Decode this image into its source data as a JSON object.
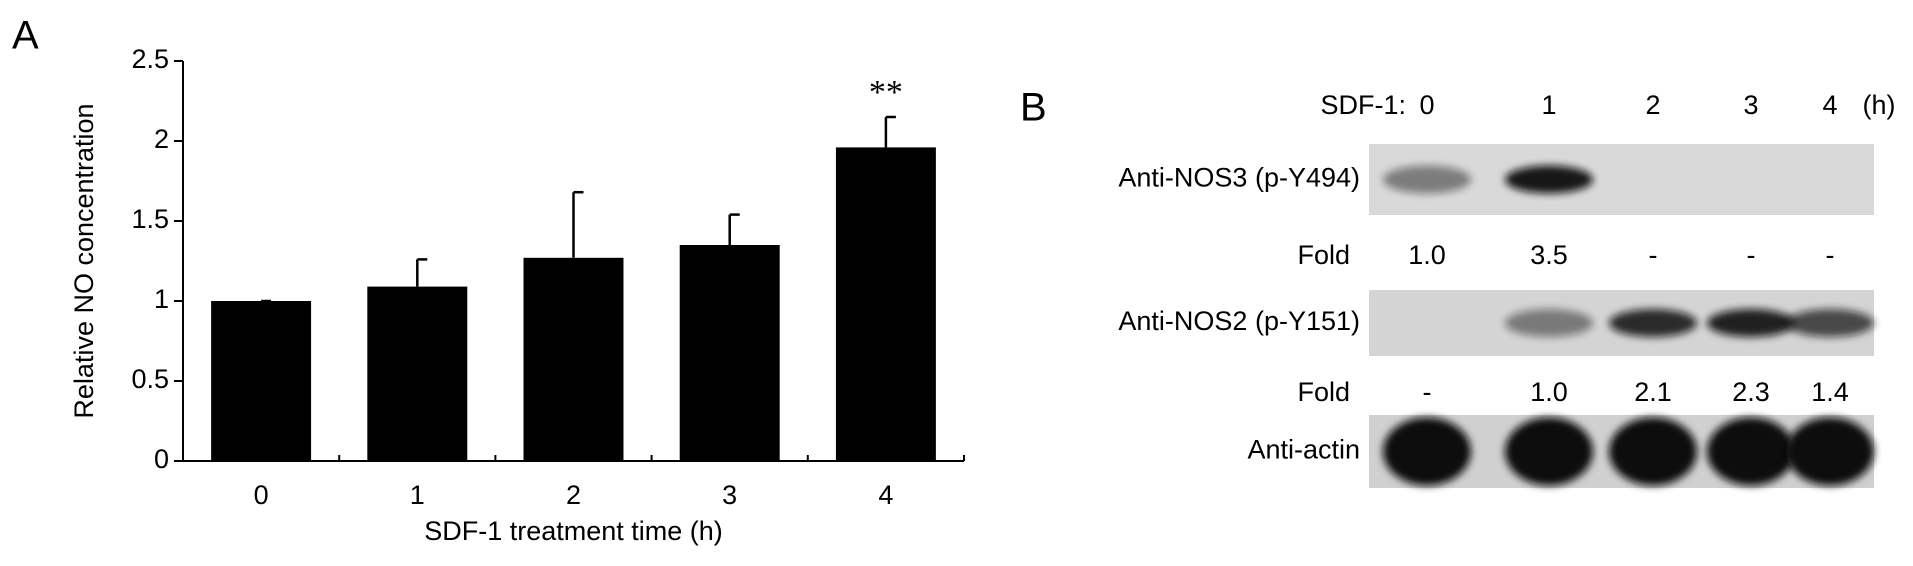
{
  "chart_data": {
    "type": "bar",
    "panel_label": "A",
    "categories": [
      "0",
      "1",
      "2",
      "3",
      "4"
    ],
    "values": [
      1.0,
      1.09,
      1.27,
      1.35,
      1.96
    ],
    "errors": [
      0,
      0.17,
      0.41,
      0.19,
      0.19
    ],
    "color": "#000000",
    "ylim": [
      0,
      2.5
    ],
    "yticks": [
      0,
      0.5,
      1,
      1.5,
      2,
      2.5
    ],
    "ylabel": "Relative NO concentration",
    "xlabel": "SDF-1 treatment time (h)",
    "annotations": [
      {
        "text": "**",
        "category": "4"
      }
    ]
  },
  "blot": {
    "panel_label": "B",
    "header_label": "SDF-1:",
    "lanes": [
      "0",
      "1",
      "2",
      "3",
      "4"
    ],
    "unit": "(h)",
    "rows": [
      {
        "label": "Anti-NOS3 (p-Y494)",
        "fold_label": "Fold",
        "fold": [
          "1.0",
          "3.5",
          "-",
          "-",
          "-"
        ]
      },
      {
        "label": "Anti-NOS2 (p-Y151)",
        "fold_label": "Fold",
        "fold": [
          "-",
          "1.0",
          "2.1",
          "2.3",
          "1.4"
        ]
      },
      {
        "label": "Anti-actin"
      }
    ]
  }
}
